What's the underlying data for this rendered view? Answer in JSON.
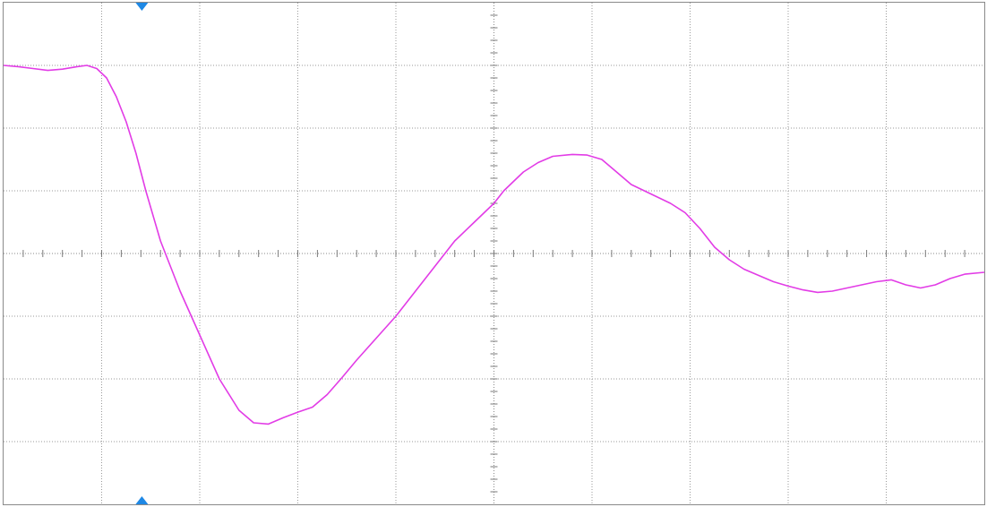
{
  "chart_data": {
    "type": "line",
    "grid": true,
    "divisions": {
      "x": 10,
      "y": 8
    },
    "xlim": [
      0,
      10
    ],
    "ylim": [
      -4,
      4
    ],
    "trigger_marker_x": 1.41,
    "colors": {
      "background": "#ffffff",
      "grid": "#9a9a9a",
      "trace": "#e23ce6",
      "marker": "#1e88e5"
    },
    "series": [
      {
        "color": "#e23ce6",
        "x": [
          0.0,
          0.15,
          0.3,
          0.45,
          0.6,
          0.75,
          0.85,
          0.95,
          1.05,
          1.15,
          1.25,
          1.35,
          1.45,
          1.6,
          1.8,
          2.0,
          2.2,
          2.4,
          2.55,
          2.7,
          2.85,
          3.0,
          3.15,
          3.3,
          3.45,
          3.6,
          3.8,
          4.0,
          4.2,
          4.4,
          4.6,
          4.8,
          5.0,
          5.1,
          5.2,
          5.3,
          5.45,
          5.6,
          5.8,
          5.95,
          6.1,
          6.25,
          6.4,
          6.6,
          6.8,
          6.95,
          7.1,
          7.25,
          7.4,
          7.55,
          7.7,
          7.85,
          8.0,
          8.15,
          8.3,
          8.45,
          8.6,
          8.75,
          8.9,
          9.05,
          9.2,
          9.35,
          9.5,
          9.65,
          9.8,
          10.0
        ],
        "y": [
          3.0,
          2.98,
          2.95,
          2.92,
          2.94,
          2.98,
          3.0,
          2.95,
          2.8,
          2.5,
          2.1,
          1.6,
          1.0,
          0.2,
          -0.6,
          -1.3,
          -2.0,
          -2.5,
          -2.7,
          -2.72,
          -2.62,
          -2.53,
          -2.45,
          -2.25,
          -1.98,
          -1.7,
          -1.35,
          -1.0,
          -0.6,
          -0.2,
          0.2,
          0.5,
          0.8,
          1.0,
          1.15,
          1.3,
          1.45,
          1.55,
          1.58,
          1.57,
          1.5,
          1.3,
          1.1,
          0.95,
          0.8,
          0.65,
          0.4,
          0.1,
          -0.1,
          -0.25,
          -0.35,
          -0.45,
          -0.52,
          -0.58,
          -0.62,
          -0.6,
          -0.55,
          -0.5,
          -0.45,
          -0.42,
          -0.5,
          -0.55,
          -0.5,
          -0.4,
          -0.33,
          -0.3
        ]
      }
    ]
  }
}
